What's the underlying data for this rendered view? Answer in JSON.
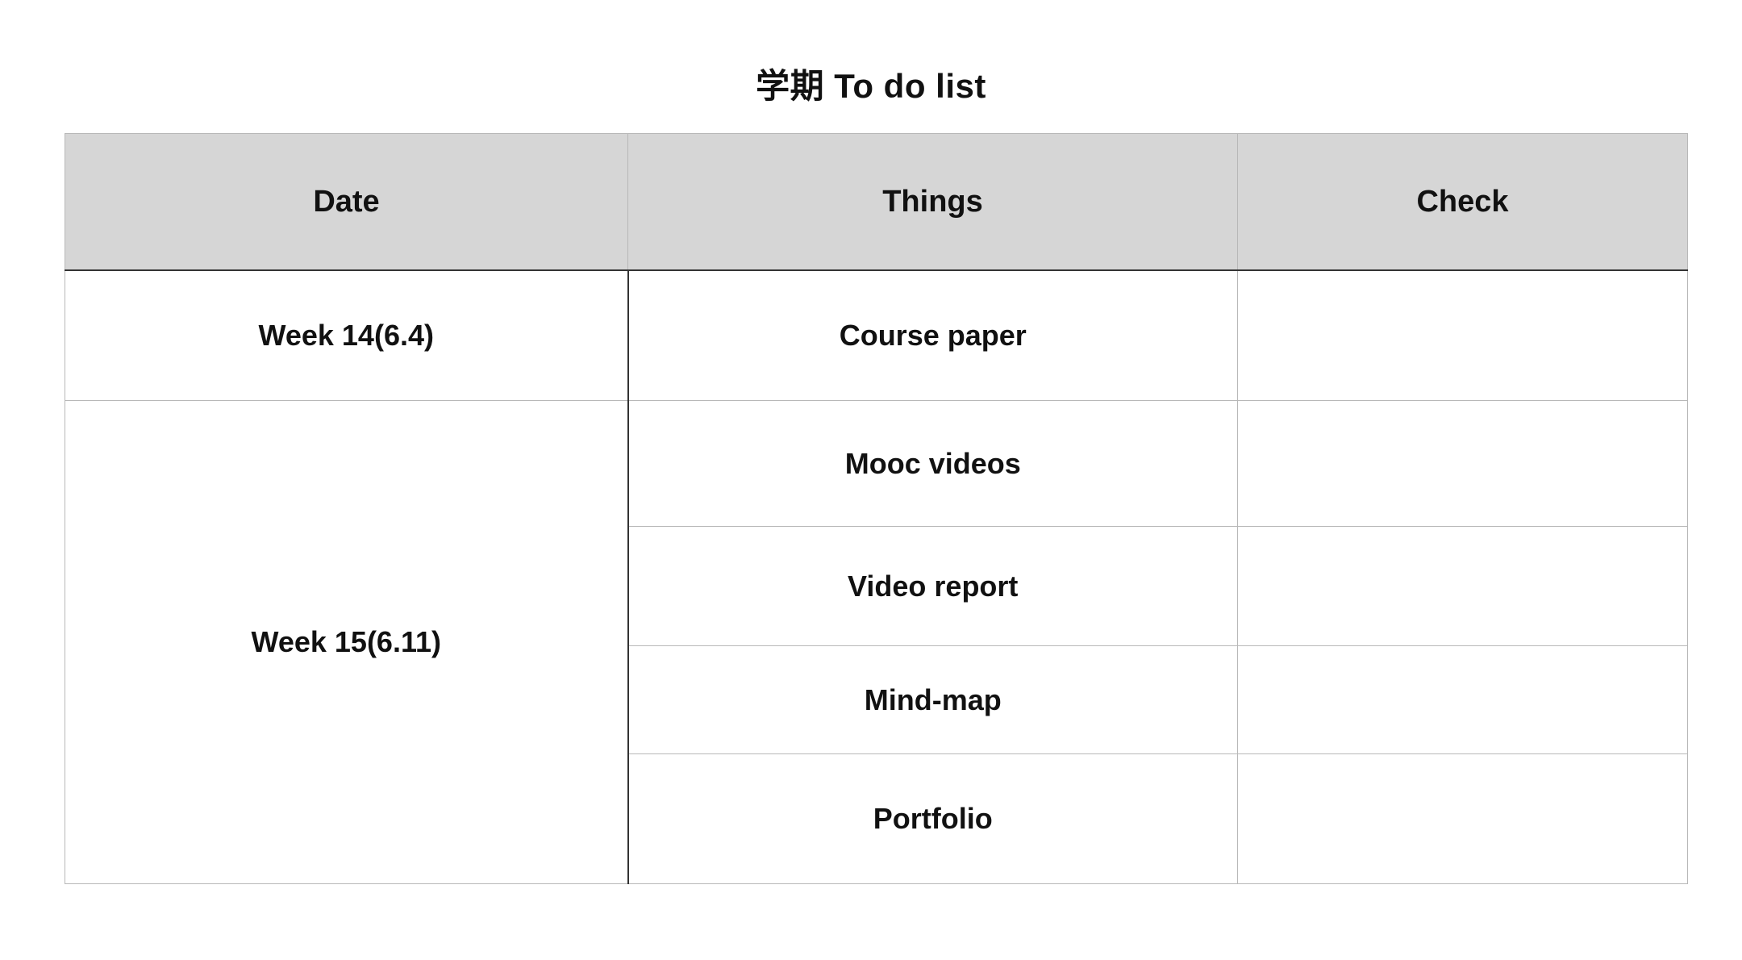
{
  "document": {
    "title": "学期 To do list"
  },
  "table": {
    "headers": {
      "date": "Date",
      "things": "Things",
      "check": "Check"
    },
    "groups": [
      {
        "date": "Week 14(6.4)",
        "items": [
          {
            "thing": "Course paper",
            "check": ""
          }
        ]
      },
      {
        "date": "Week 15(6.11)",
        "items": [
          {
            "thing": "Mooc videos",
            "check": ""
          },
          {
            "thing": "Video report",
            "check": ""
          },
          {
            "thing": "Mind-map",
            "check": ""
          },
          {
            "thing": "Portfolio",
            "check": ""
          }
        ]
      }
    ]
  }
}
